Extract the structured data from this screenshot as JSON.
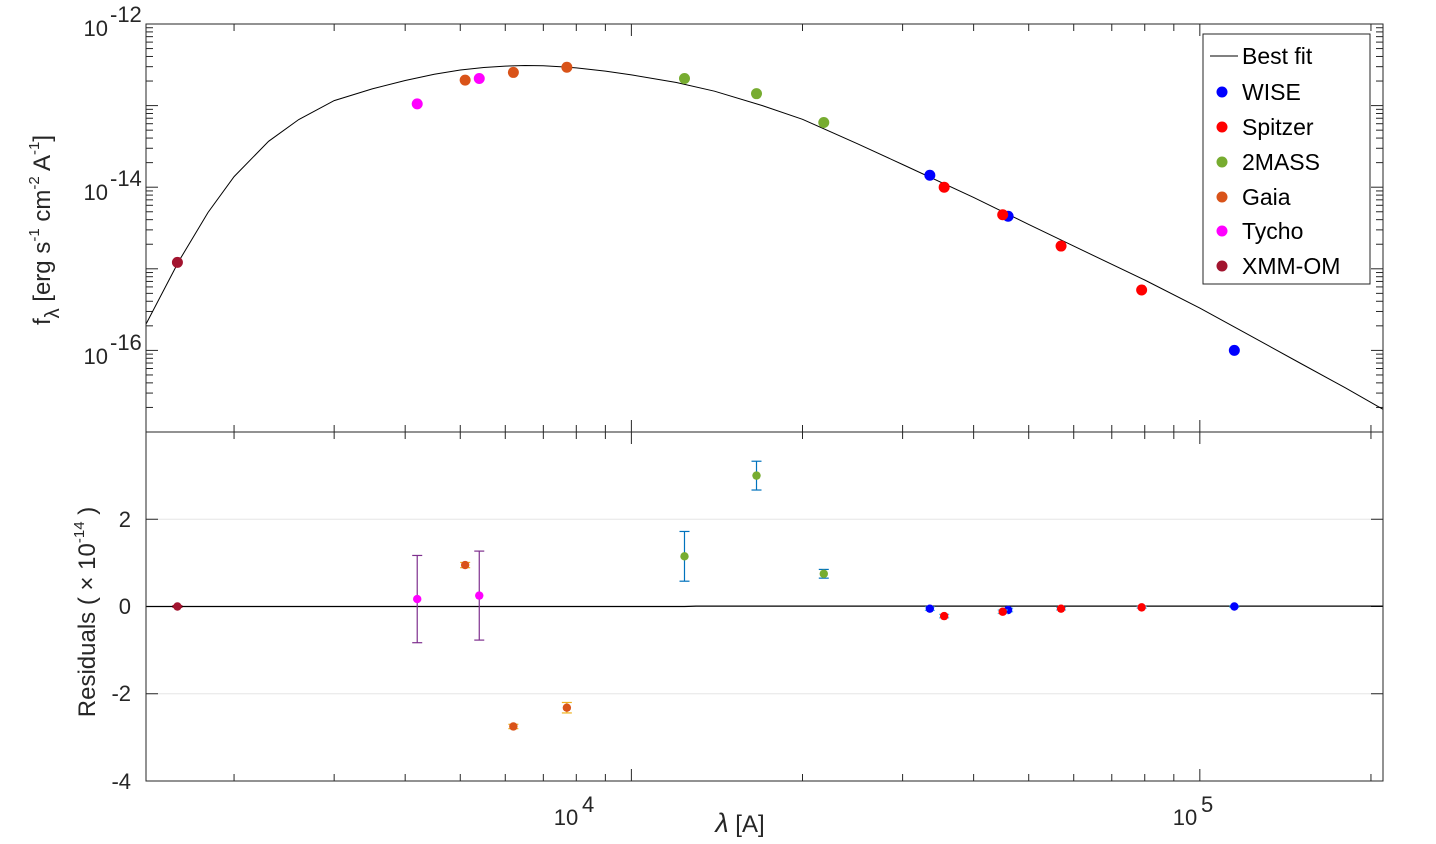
{
  "chart_data": [
    {
      "type": "line",
      "panel": "sed",
      "x_scale": "log",
      "y_scale": "log",
      "xlim": [
        1400,
        210000
      ],
      "ylim": [
        1e-17,
        1e-12
      ],
      "ylabel": {
        "base": "f",
        "sub": "λ",
        "text1": " [erg s",
        "sup1": "-1",
        "text2": " cm",
        "sup2": "-2",
        "text3": " A",
        "sup3": "-1",
        "text4": "]"
      },
      "y_ticks": [
        {
          "value": 1e-12,
          "base": "10",
          "exp": "-12"
        },
        {
          "value": 1e-14,
          "base": "10",
          "exp": "-14"
        },
        {
          "value": 1e-16,
          "base": "10",
          "exp": "-16"
        }
      ],
      "legend": {
        "position": "top-right",
        "entries": [
          {
            "label": "Best fit",
            "kind": "line",
            "color": "#000000"
          },
          {
            "label": "WISE",
            "kind": "marker",
            "color": "#0000ff"
          },
          {
            "label": "Spitzer",
            "kind": "marker",
            "color": "#ff0000"
          },
          {
            "label": "2MASS",
            "kind": "marker",
            "color": "#77ac30"
          },
          {
            "label": "Gaia",
            "kind": "marker",
            "color": "#d95319"
          },
          {
            "label": "Tycho",
            "kind": "marker",
            "color": "#ff00ff"
          },
          {
            "label": "XMM-OM",
            "kind": "marker",
            "color": "#a2142f"
          }
        ]
      },
      "best_fit": {
        "name": "Best fit",
        "color": "#000000",
        "x": [
          1400,
          1600,
          1800,
          2000,
          2300,
          2600,
          3000,
          3500,
          4000,
          4500,
          5000,
          5500,
          6000,
          6500,
          7000,
          7500,
          8000,
          9000,
          10000,
          12000,
          14000,
          17000,
          20000,
          25000,
          30000,
          40000,
          50000,
          60000,
          80000,
          100000,
          120000,
          150000,
          180000,
          210000
        ],
        "y": [
          2.1e-16,
          1.25e-15,
          4.9e-15,
          1.35e-14,
          3.65e-14,
          6.75e-14,
          1.15e-13,
          1.6e-13,
          2.03e-13,
          2.42e-13,
          2.73e-13,
          2.93e-13,
          3.05e-13,
          3.1e-13,
          3.08e-13,
          3e-13,
          2.9e-13,
          2.65e-13,
          2.38e-13,
          1.92e-13,
          1.5e-13,
          1e-13,
          6.8e-14,
          3.4e-14,
          1.9e-14,
          7.5e-15,
          3.5e-15,
          1.9e-15,
          7.3e-16,
          3.3e-16,
          1.65e-16,
          7e-17,
          3.5e-17,
          1.9e-17
        ]
      },
      "series": [
        {
          "name": "WISE",
          "color": "#0000ff",
          "x": [
            33500,
            46000,
            115000
          ],
          "y": [
            1.4e-14,
            4.4e-15,
            1e-16
          ]
        },
        {
          "name": "Spitzer",
          "color": "#ff0000",
          "x": [
            35500,
            45000,
            57000,
            79000
          ],
          "y": [
            1e-14,
            4.6e-15,
            1.9e-15,
            5.5e-16
          ]
        },
        {
          "name": "2MASS",
          "color": "#77ac30",
          "x": [
            12400,
            16600,
            21800
          ],
          "y": [
            2.15e-13,
            1.4e-13,
            6.2e-14
          ]
        },
        {
          "name": "Gaia",
          "color": "#d95319",
          "x": [
            5100,
            6200,
            7700
          ],
          "y": [
            2.05e-13,
            2.55e-13,
            2.95e-13
          ]
        },
        {
          "name": "Tycho",
          "color": "#ff00ff",
          "x": [
            4200,
            5400
          ],
          "y": [
            1.05e-13,
            2.15e-13
          ]
        },
        {
          "name": "XMM-OM",
          "color": "#a2142f",
          "x": [
            1590
          ],
          "y": [
            1.2e-15
          ]
        }
      ]
    },
    {
      "type": "scatter",
      "panel": "residuals",
      "x_scale": "log",
      "xlim": [
        1400,
        210000
      ],
      "ylim": [
        -4,
        4
      ],
      "ylabel": {
        "text": "Residuals ( × 10",
        "sup": "-14",
        "close": ")"
      },
      "xlabel": {
        "symbol": "λ",
        "text": " [A]"
      },
      "y_ticks": [
        2,
        0,
        -2,
        -4
      ],
      "y_grid": [
        2,
        -2
      ],
      "x_ticks": [
        {
          "value": 10000,
          "base": "10",
          "exp": "4"
        },
        {
          "value": 100000,
          "base": "10",
          "exp": "5"
        }
      ],
      "zero_line": {
        "x": [
          1400,
          12400,
          13000,
          210000
        ],
        "y": [
          0,
          0,
          0.01,
          0.01
        ]
      },
      "series": [
        {
          "name": "XMM-OM",
          "color": "#a2142f",
          "x": [
            1590
          ],
          "y": [
            0
          ],
          "err": [
            0.02
          ],
          "err_color": "#a2142f"
        },
        {
          "name": "Tycho",
          "color": "#ff00ff",
          "x": [
            4200,
            5400
          ],
          "y": [
            0.17,
            0.25
          ],
          "err": [
            1.0,
            1.02
          ],
          "err_color": "#7e2f8e"
        },
        {
          "name": "Gaia",
          "color": "#d95319",
          "x": [
            5100,
            6200,
            7700
          ],
          "y": [
            0.95,
            -2.75,
            -2.32
          ],
          "err": [
            0.06,
            0.05,
            0.12
          ],
          "err_color": "#edb120"
        },
        {
          "name": "2MASS",
          "color": "#77ac30",
          "x": [
            12400,
            16600,
            21800
          ],
          "y": [
            1.15,
            3.0,
            0.75
          ],
          "err": [
            0.57,
            0.33,
            0.1
          ],
          "err_color": "#0072bd"
        },
        {
          "name": "WISE",
          "color": "#0000ff",
          "x": [
            33500,
            46000,
            115000
          ],
          "y": [
            -0.05,
            -0.08,
            0.0
          ],
          "err": [
            0.04,
            0.04,
            0.02
          ],
          "err_color": "#4dbeee"
        },
        {
          "name": "Spitzer",
          "color": "#ff0000",
          "x": [
            35500,
            45000,
            57000,
            79000
          ],
          "y": [
            -0.22,
            -0.12,
            -0.05,
            -0.02
          ],
          "err": [
            0.04,
            0.04,
            0.03,
            0.02
          ],
          "err_color": "#4dbeee"
        }
      ]
    }
  ]
}
